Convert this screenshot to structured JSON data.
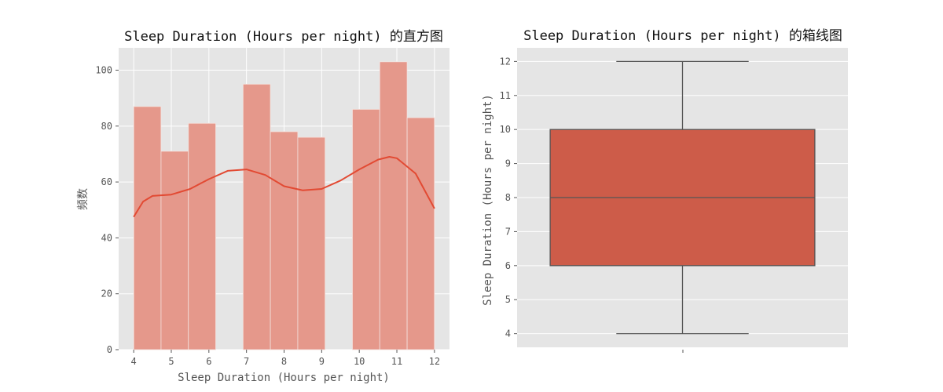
{
  "colors": {
    "panel_bg": "#e5e5e5",
    "grid": "#ffffff",
    "hist_bar": "#e5988b",
    "kde_line": "#e24a33",
    "box_fill": "#cd5c49",
    "box_line": "#555555"
  },
  "chart_data": [
    {
      "type": "histogram",
      "title": "Sleep Duration (Hours per night) 的直方图",
      "xlabel": "Sleep Duration (Hours per night)",
      "ylabel": "频数",
      "xlim": [
        3.6,
        12.4
      ],
      "ylim": [
        0,
        108
      ],
      "xticks": [
        4,
        5,
        6,
        7,
        8,
        9,
        10,
        11,
        12
      ],
      "yticks": [
        0,
        20,
        40,
        60,
        80,
        100
      ],
      "grid": true,
      "bins": [
        {
          "x0": 4.0,
          "x1": 4.727,
          "count": 87
        },
        {
          "x0": 4.727,
          "x1": 5.455,
          "count": 71
        },
        {
          "x0": 5.455,
          "x1": 6.182,
          "count": 81
        },
        {
          "x0": 6.182,
          "x1": 6.909,
          "count": 0
        },
        {
          "x0": 6.909,
          "x1": 7.636,
          "count": 95
        },
        {
          "x0": 7.636,
          "x1": 8.364,
          "count": 78
        },
        {
          "x0": 8.364,
          "x1": 9.091,
          "count": 76
        },
        {
          "x0": 9.091,
          "x1": 9.818,
          "count": 0
        },
        {
          "x0": 9.818,
          "x1": 10.545,
          "count": 86
        },
        {
          "x0": 10.545,
          "x1": 11.273,
          "count": 103
        },
        {
          "x0": 11.273,
          "x1": 12.0,
          "count": 83
        }
      ],
      "kde": {
        "x": [
          4.0,
          4.25,
          4.5,
          5.0,
          5.5,
          6.0,
          6.5,
          7.0,
          7.5,
          8.0,
          8.5,
          9.0,
          9.5,
          10.0,
          10.5,
          10.8,
          11.0,
          11.5,
          12.0
        ],
        "y": [
          47.5,
          53,
          55,
          55.5,
          57.5,
          61,
          64,
          64.5,
          62.5,
          58.5,
          57,
          57.5,
          60.5,
          64.5,
          68,
          69,
          68.5,
          63,
          50.5
        ]
      }
    },
    {
      "type": "box",
      "title": "Sleep Duration (Hours per night) 的箱线图",
      "ylabel": "Sleep Duration (Hours per night)",
      "ylim": [
        3.6,
        12.4
      ],
      "yticks": [
        4,
        5,
        6,
        7,
        8,
        9,
        10,
        11,
        12
      ],
      "grid": true,
      "stats": {
        "min": 4,
        "q1": 6,
        "median": 8,
        "q3": 10,
        "max": 12
      }
    }
  ]
}
